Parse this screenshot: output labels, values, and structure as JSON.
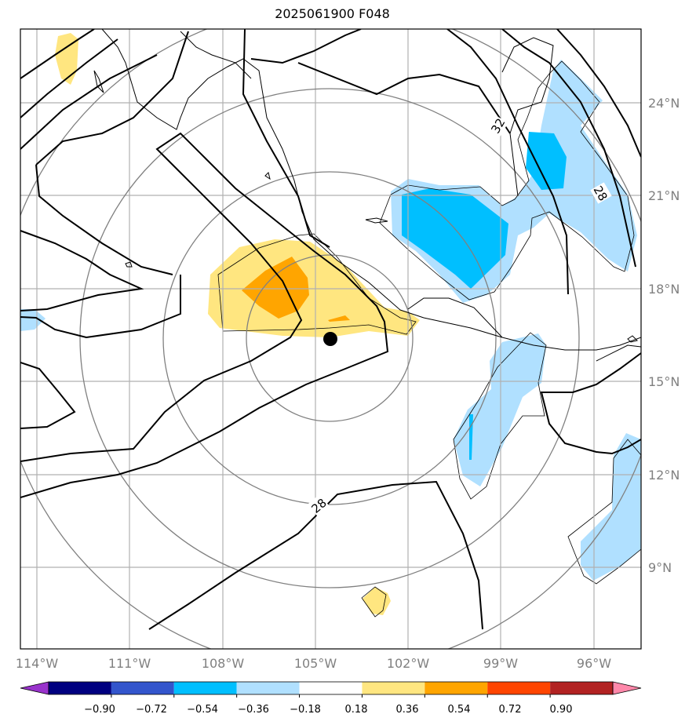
{
  "title": "2025061900 F048",
  "map": {
    "lon_range": [
      -114.5,
      -94.5
    ],
    "lat_range": [
      5.5,
      25.5
    ],
    "lon_ticks": [
      "114°W",
      "111°W",
      "108°W",
      "105°W",
      "102°W",
      "99°W",
      "96°W"
    ],
    "lat_ticks": [
      "24°N",
      "21°N",
      "18°N",
      "15°N",
      "12°N",
      "9°N"
    ],
    "grid": true,
    "storm_center": {
      "lon": -104.5,
      "lat": 16.4
    },
    "range_rings": true,
    "contour_labels": [
      "32",
      "28",
      "28"
    ]
  },
  "colorbar": {
    "tick_labels": [
      "−0.90",
      "−0.72",
      "−0.54",
      "−0.36",
      "−0.18",
      "0.18",
      "0.36",
      "0.54",
      "0.72",
      "0.90"
    ],
    "colors": [
      "#9933cc",
      "#000080",
      "#3355cc",
      "#00bfff",
      "#b0e0ff",
      "#ffffff",
      "#ffe680",
      "#ffa500",
      "#ff4500",
      "#b22222",
      "#ff88aa"
    ],
    "extend": "both"
  },
  "colors": {
    "gridline": "#b0b0b0",
    "ring": "#808080",
    "contour": "#000000"
  }
}
